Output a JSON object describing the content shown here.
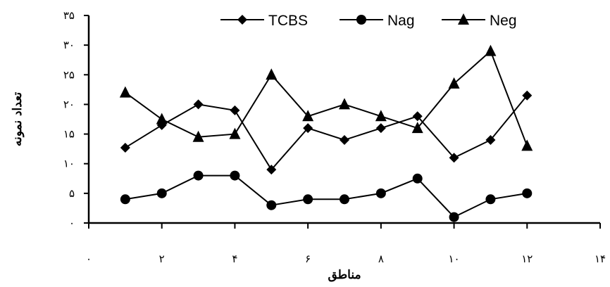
{
  "chart_data": {
    "type": "line",
    "xlabel": "مناطق",
    "ylabel": "تعداد نمونه",
    "xlim": [
      0,
      14
    ],
    "ylim": [
      0,
      35
    ],
    "x_ticks": [
      {
        "value": 0,
        "label": "۰"
      },
      {
        "value": 2,
        "label": "۲"
      },
      {
        "value": 4,
        "label": "۴"
      },
      {
        "value": 6,
        "label": "۶"
      },
      {
        "value": 8,
        "label": "۸"
      },
      {
        "value": 10,
        "label": "۱۰"
      },
      {
        "value": 12,
        "label": "۱۲"
      },
      {
        "value": 14,
        "label": "۱۴"
      }
    ],
    "y_ticks": [
      {
        "value": 0,
        "label": "۰"
      },
      {
        "value": 5,
        "label": "۵"
      },
      {
        "value": 10,
        "label": "۱۰"
      },
      {
        "value": 15,
        "label": "۱۵"
      },
      {
        "value": 20,
        "label": "۲۰"
      },
      {
        "value": 25,
        "label": "۲۵"
      },
      {
        "value": 30,
        "label": "۳۰"
      },
      {
        "value": 35,
        "label": "۳۵"
      }
    ],
    "grid": false,
    "legend_position": "top",
    "x": [
      1,
      2,
      3,
      4,
      5,
      6,
      7,
      8,
      9,
      10,
      11,
      12
    ],
    "series": [
      {
        "name": "TCBS",
        "marker": "diamond",
        "values": [
          12.7,
          16.5,
          20,
          19,
          9,
          16,
          14,
          16,
          18,
          11,
          14,
          21.5
        ]
      },
      {
        "name": "Nag",
        "marker": "circle",
        "values": [
          4,
          5,
          8,
          8,
          3,
          4,
          4,
          5,
          7.5,
          1,
          4,
          5
        ]
      },
      {
        "name": "Neg",
        "marker": "triangle",
        "values": [
          22,
          17.5,
          14.5,
          15,
          25,
          18,
          20,
          18,
          16,
          23.5,
          29,
          13
        ]
      }
    ]
  }
}
